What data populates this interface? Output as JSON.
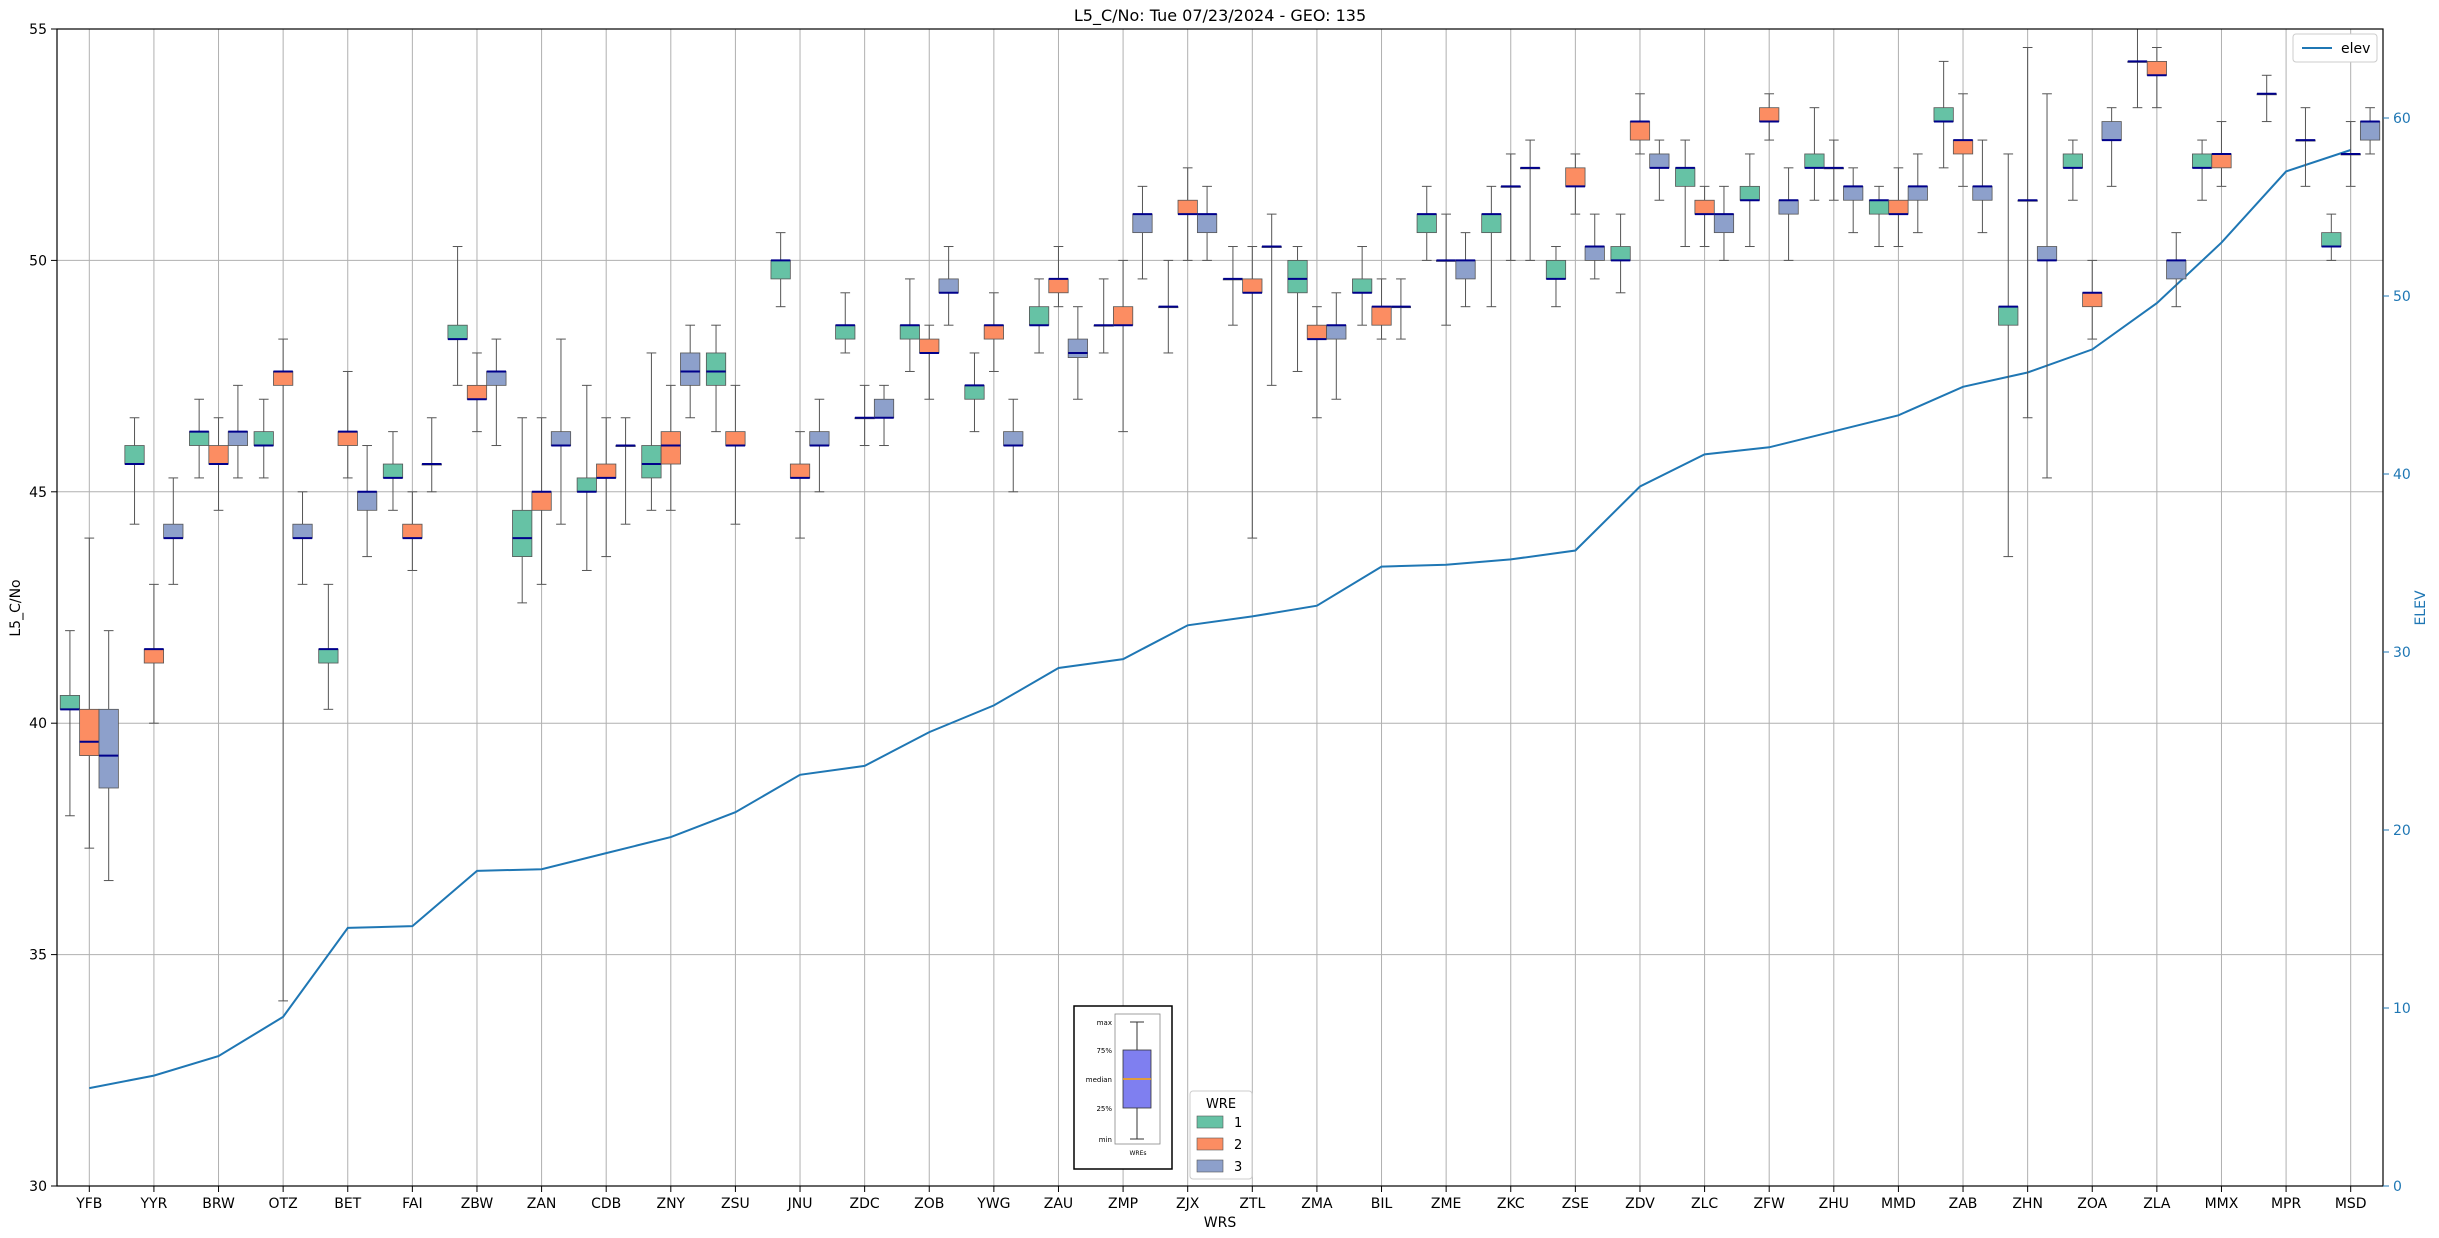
{
  "chart_data": {
    "type": "boxplot",
    "title": "L5_C/No: Tue 07/23/2024 - GEO: 135",
    "xlabel": "WRS",
    "ylabel": "L5_C/No",
    "y2label": "ELEV",
    "ylim": [
      30,
      55
    ],
    "y2lim": [
      0,
      65
    ],
    "yticks": [
      30,
      35,
      40,
      45,
      50,
      55
    ],
    "y2ticks": [
      0,
      10,
      20,
      30,
      40,
      50,
      60
    ],
    "grid": true,
    "categories": [
      "YFB",
      "YYR",
      "BRW",
      "OTZ",
      "BET",
      "FAI",
      "ZBW",
      "ZAN",
      "CDB",
      "ZNY",
      "ZSU",
      "JNU",
      "ZDC",
      "ZOB",
      "YWG",
      "ZAU",
      "ZMP",
      "ZJX",
      "ZTL",
      "ZMA",
      "BIL",
      "ZME",
      "ZKC",
      "ZSE",
      "ZDV",
      "ZLC",
      "ZFW",
      "ZHU",
      "MMD",
      "ZAB",
      "ZHN",
      "ZOA",
      "ZLA",
      "MMX",
      "MPR",
      "MSD"
    ],
    "groups": [
      {
        "name": "1",
        "color": "#66c2a5"
      },
      {
        "name": "2",
        "color": "#fc8d62"
      },
      {
        "name": "3",
        "color": "#8da0cb"
      }
    ],
    "boxes": [
      {
        "station": "YFB",
        "wre": 1,
        "min": 38.0,
        "q1": 40.3,
        "median": 40.3,
        "q3": 40.6,
        "max": 42.0
      },
      {
        "station": "YFB",
        "wre": 2,
        "min": 37.3,
        "q1": 39.3,
        "median": 39.6,
        "q3": 40.3,
        "max": 44.0
      },
      {
        "station": "YFB",
        "wre": 3,
        "min": 36.6,
        "q1": 38.6,
        "median": 39.3,
        "q3": 40.3,
        "max": 42.0
      },
      {
        "station": "YYR",
        "wre": 1,
        "min": 44.3,
        "q1": 45.6,
        "median": 45.6,
        "q3": 46.0,
        "max": 46.6
      },
      {
        "station": "YYR",
        "wre": 2,
        "min": 40.0,
        "q1": 41.3,
        "median": 41.6,
        "q3": 41.6,
        "max": 43.0
      },
      {
        "station": "YYR",
        "wre": 3,
        "min": 43.0,
        "q1": 44.0,
        "median": 44.0,
        "q3": 44.3,
        "max": 45.3
      },
      {
        "station": "BRW",
        "wre": 1,
        "min": 45.3,
        "q1": 46.0,
        "median": 46.3,
        "q3": 46.3,
        "max": 47.0
      },
      {
        "station": "BRW",
        "wre": 2,
        "min": 44.6,
        "q1": 45.6,
        "median": 45.6,
        "q3": 46.0,
        "max": 46.6
      },
      {
        "station": "BRW",
        "wre": 3,
        "min": 45.3,
        "q1": 46.0,
        "median": 46.3,
        "q3": 46.3,
        "max": 47.3
      },
      {
        "station": "OTZ",
        "wre": 1,
        "min": 45.3,
        "q1": 46.0,
        "median": 46.0,
        "q3": 46.3,
        "max": 47.0
      },
      {
        "station": "OTZ",
        "wre": 2,
        "min": 34.0,
        "q1": 47.3,
        "median": 47.6,
        "q3": 47.6,
        "max": 48.3
      },
      {
        "station": "OTZ",
        "wre": 3,
        "min": 43.0,
        "q1": 44.0,
        "median": 44.0,
        "q3": 44.3,
        "max": 45.0
      },
      {
        "station": "BET",
        "wre": 1,
        "min": 40.3,
        "q1": 41.3,
        "median": 41.6,
        "q3": 41.6,
        "max": 43.0
      },
      {
        "station": "BET",
        "wre": 2,
        "min": 45.3,
        "q1": 46.0,
        "median": 46.3,
        "q3": 46.3,
        "max": 47.6
      },
      {
        "station": "BET",
        "wre": 3,
        "min": 43.6,
        "q1": 44.6,
        "median": 45.0,
        "q3": 45.0,
        "max": 46.0
      },
      {
        "station": "FAI",
        "wre": 1,
        "min": 44.6,
        "q1": 45.3,
        "median": 45.3,
        "q3": 45.6,
        "max": 46.3
      },
      {
        "station": "FAI",
        "wre": 2,
        "min": 43.3,
        "q1": 44.0,
        "median": 44.0,
        "q3": 44.3,
        "max": 45.0
      },
      {
        "station": "FAI",
        "wre": 3,
        "min": 45.0,
        "q1": 45.6,
        "median": 45.6,
        "q3": 45.6,
        "max": 46.6
      },
      {
        "station": "ZBW",
        "wre": 1,
        "min": 47.3,
        "q1": 48.3,
        "median": 48.3,
        "q3": 48.6,
        "max": 50.3
      },
      {
        "station": "ZBW",
        "wre": 2,
        "min": 46.3,
        "q1": 47.0,
        "median": 47.0,
        "q3": 47.3,
        "max": 48.0
      },
      {
        "station": "ZBW",
        "wre": 3,
        "min": 46.0,
        "q1": 47.3,
        "median": 47.6,
        "q3": 47.6,
        "max": 48.3
      },
      {
        "station": "ZAN",
        "wre": 1,
        "min": 42.6,
        "q1": 43.6,
        "median": 44.0,
        "q3": 44.6,
        "max": 46.6
      },
      {
        "station": "ZAN",
        "wre": 2,
        "min": 43.0,
        "q1": 44.6,
        "median": 45.0,
        "q3": 45.0,
        "max": 46.6
      },
      {
        "station": "ZAN",
        "wre": 3,
        "min": 44.3,
        "q1": 46.0,
        "median": 46.0,
        "q3": 46.3,
        "max": 48.3
      },
      {
        "station": "CDB",
        "wre": 1,
        "min": 43.3,
        "q1": 45.0,
        "median": 45.0,
        "q3": 45.3,
        "max": 47.3
      },
      {
        "station": "CDB",
        "wre": 2,
        "min": 43.6,
        "q1": 45.3,
        "median": 45.3,
        "q3": 45.6,
        "max": 46.6
      },
      {
        "station": "CDB",
        "wre": 3,
        "min": 44.3,
        "q1": 46.0,
        "median": 46.0,
        "q3": 46.0,
        "max": 46.6
      },
      {
        "station": "ZNY",
        "wre": 1,
        "min": 44.6,
        "q1": 45.3,
        "median": 45.6,
        "q3": 46.0,
        "max": 48.0
      },
      {
        "station": "ZNY",
        "wre": 2,
        "min": 44.6,
        "q1": 45.6,
        "median": 46.0,
        "q3": 46.3,
        "max": 47.3
      },
      {
        "station": "ZNY",
        "wre": 3,
        "min": 46.6,
        "q1": 47.3,
        "median": 47.6,
        "q3": 48.0,
        "max": 48.6
      },
      {
        "station": "ZSU",
        "wre": 1,
        "min": 46.3,
        "q1": 47.3,
        "median": 47.6,
        "q3": 48.0,
        "max": 48.6
      },
      {
        "station": "ZSU",
        "wre": 2,
        "min": 44.3,
        "q1": 46.0,
        "median": 46.0,
        "q3": 46.3,
        "max": 47.3
      },
      {
        "station": "JNU",
        "wre": 1,
        "min": 49.0,
        "q1": 49.6,
        "median": 50.0,
        "q3": 50.0,
        "max": 50.6
      },
      {
        "station": "JNU",
        "wre": 2,
        "min": 44.0,
        "q1": 45.3,
        "median": 45.3,
        "q3": 45.6,
        "max": 46.3
      },
      {
        "station": "JNU",
        "wre": 3,
        "min": 45.0,
        "q1": 46.0,
        "median": 46.0,
        "q3": 46.3,
        "max": 47.0
      },
      {
        "station": "ZDC",
        "wre": 1,
        "min": 48.0,
        "q1": 48.3,
        "median": 48.6,
        "q3": 48.6,
        "max": 49.3
      },
      {
        "station": "ZDC",
        "wre": 2,
        "min": 46.0,
        "q1": 46.6,
        "median": 46.6,
        "q3": 46.6,
        "max": 47.3
      },
      {
        "station": "ZDC",
        "wre": 3,
        "min": 46.0,
        "q1": 46.6,
        "median": 46.6,
        "q3": 47.0,
        "max": 47.3
      },
      {
        "station": "ZOB",
        "wre": 1,
        "min": 47.6,
        "q1": 48.3,
        "median": 48.6,
        "q3": 48.6,
        "max": 49.6
      },
      {
        "station": "ZOB",
        "wre": 2,
        "min": 47.0,
        "q1": 48.0,
        "median": 48.0,
        "q3": 48.3,
        "max": 48.6
      },
      {
        "station": "ZOB",
        "wre": 3,
        "min": 48.6,
        "q1": 49.3,
        "median": 49.3,
        "q3": 49.6,
        "max": 50.3
      },
      {
        "station": "YWG",
        "wre": 1,
        "min": 46.3,
        "q1": 47.0,
        "median": 47.3,
        "q3": 47.3,
        "max": 48.0
      },
      {
        "station": "YWG",
        "wre": 2,
        "min": 47.6,
        "q1": 48.3,
        "median": 48.6,
        "q3": 48.6,
        "max": 49.3
      },
      {
        "station": "YWG",
        "wre": 3,
        "min": 45.0,
        "q1": 46.0,
        "median": 46.0,
        "q3": 46.3,
        "max": 47.0
      },
      {
        "station": "ZAU",
        "wre": 1,
        "min": 48.0,
        "q1": 48.6,
        "median": 48.6,
        "q3": 49.0,
        "max": 49.6
      },
      {
        "station": "ZAU",
        "wre": 2,
        "min": 49.0,
        "q1": 49.3,
        "median": 49.6,
        "q3": 49.6,
        "max": 50.3
      },
      {
        "station": "ZAU",
        "wre": 3,
        "min": 47.0,
        "q1": 47.9,
        "median": 48.0,
        "q3": 48.3,
        "max": 49.0
      },
      {
        "station": "ZMP",
        "wre": 1,
        "min": 48.0,
        "q1": 48.6,
        "median": 48.6,
        "q3": 48.6,
        "max": 49.6
      },
      {
        "station": "ZMP",
        "wre": 2,
        "min": 46.3,
        "q1": 48.6,
        "median": 48.6,
        "q3": 49.0,
        "max": 50.0
      },
      {
        "station": "ZMP",
        "wre": 3,
        "min": 49.6,
        "q1": 50.6,
        "median": 51.0,
        "q3": 51.0,
        "max": 51.6
      },
      {
        "station": "ZJX",
        "wre": 1,
        "min": 48.0,
        "q1": 49.0,
        "median": 49.0,
        "q3": 49.0,
        "max": 50.0
      },
      {
        "station": "ZJX",
        "wre": 2,
        "min": 50.0,
        "q1": 51.0,
        "median": 51.0,
        "q3": 51.3,
        "max": 52.0
      },
      {
        "station": "ZJX",
        "wre": 3,
        "min": 50.0,
        "q1": 50.6,
        "median": 51.0,
        "q3": 51.0,
        "max": 51.6
      },
      {
        "station": "ZTL",
        "wre": 1,
        "min": 48.6,
        "q1": 49.6,
        "median": 49.6,
        "q3": 49.6,
        "max": 50.3
      },
      {
        "station": "ZTL",
        "wre": 2,
        "min": 44.0,
        "q1": 49.3,
        "median": 49.3,
        "q3": 49.6,
        "max": 50.3
      },
      {
        "station": "ZTL",
        "wre": 3,
        "min": 47.3,
        "q1": 50.3,
        "median": 50.3,
        "q3": 50.3,
        "max": 51.0
      },
      {
        "station": "ZMA",
        "wre": 1,
        "min": 47.6,
        "q1": 49.3,
        "median": 49.6,
        "q3": 50.0,
        "max": 50.3
      },
      {
        "station": "ZMA",
        "wre": 2,
        "min": 46.6,
        "q1": 48.3,
        "median": 48.3,
        "q3": 48.6,
        "max": 49.0
      },
      {
        "station": "ZMA",
        "wre": 3,
        "min": 47.0,
        "q1": 48.3,
        "median": 48.6,
        "q3": 48.6,
        "max": 49.3
      },
      {
        "station": "BIL",
        "wre": 1,
        "min": 48.6,
        "q1": 49.3,
        "median": 49.3,
        "q3": 49.6,
        "max": 50.3
      },
      {
        "station": "BIL",
        "wre": 2,
        "min": 48.3,
        "q1": 48.6,
        "median": 49.0,
        "q3": 49.0,
        "max": 49.6
      },
      {
        "station": "BIL",
        "wre": 3,
        "min": 48.3,
        "q1": 49.0,
        "median": 49.0,
        "q3": 49.0,
        "max": 49.6
      },
      {
        "station": "ZME",
        "wre": 1,
        "min": 50.0,
        "q1": 50.6,
        "median": 51.0,
        "q3": 51.0,
        "max": 51.6
      },
      {
        "station": "ZME",
        "wre": 2,
        "min": 48.6,
        "q1": 50.0,
        "median": 50.0,
        "q3": 50.0,
        "max": 51.0
      },
      {
        "station": "ZME",
        "wre": 3,
        "min": 49.0,
        "q1": 49.6,
        "median": 50.0,
        "q3": 50.0,
        "max": 50.6
      },
      {
        "station": "ZKC",
        "wre": 1,
        "min": 49.0,
        "q1": 50.6,
        "median": 51.0,
        "q3": 51.0,
        "max": 51.6
      },
      {
        "station": "ZKC",
        "wre": 2,
        "min": 50.0,
        "q1": 51.6,
        "median": 51.6,
        "q3": 51.6,
        "max": 52.3
      },
      {
        "station": "ZKC",
        "wre": 3,
        "min": 50.0,
        "q1": 52.0,
        "median": 52.0,
        "q3": 52.0,
        "max": 52.6
      },
      {
        "station": "ZSE",
        "wre": 1,
        "min": 49.0,
        "q1": 49.6,
        "median": 49.6,
        "q3": 50.0,
        "max": 50.3
      },
      {
        "station": "ZSE",
        "wre": 2,
        "min": 51.0,
        "q1": 51.6,
        "median": 51.6,
        "q3": 52.0,
        "max": 52.3
      },
      {
        "station": "ZSE",
        "wre": 3,
        "min": 49.6,
        "q1": 50.0,
        "median": 50.3,
        "q3": 50.3,
        "max": 51.0
      },
      {
        "station": "ZDV",
        "wre": 1,
        "min": 49.3,
        "q1": 50.0,
        "median": 50.0,
        "q3": 50.3,
        "max": 51.0
      },
      {
        "station": "ZDV",
        "wre": 2,
        "min": 52.3,
        "q1": 52.6,
        "median": 53.0,
        "q3": 53.0,
        "max": 53.6
      },
      {
        "station": "ZDV",
        "wre": 3,
        "min": 51.3,
        "q1": 52.0,
        "median": 52.0,
        "q3": 52.3,
        "max": 52.6
      },
      {
        "station": "ZLC",
        "wre": 1,
        "min": 50.3,
        "q1": 51.6,
        "median": 52.0,
        "q3": 52.0,
        "max": 52.6
      },
      {
        "station": "ZLC",
        "wre": 2,
        "min": 50.3,
        "q1": 51.0,
        "median": 51.0,
        "q3": 51.3,
        "max": 51.6
      },
      {
        "station": "ZLC",
        "wre": 3,
        "min": 50.0,
        "q1": 50.6,
        "median": 51.0,
        "q3": 51.0,
        "max": 51.6
      },
      {
        "station": "ZFW",
        "wre": 1,
        "min": 50.3,
        "q1": 51.3,
        "median": 51.3,
        "q3": 51.6,
        "max": 52.3
      },
      {
        "station": "ZFW",
        "wre": 2,
        "min": 52.6,
        "q1": 53.0,
        "median": 53.0,
        "q3": 53.3,
        "max": 53.6
      },
      {
        "station": "ZFW",
        "wre": 3,
        "min": 50.0,
        "q1": 51.0,
        "median": 51.3,
        "q3": 51.3,
        "max": 52.0
      },
      {
        "station": "ZHU",
        "wre": 1,
        "min": 51.3,
        "q1": 52.0,
        "median": 52.0,
        "q3": 52.3,
        "max": 53.3
      },
      {
        "station": "ZHU",
        "wre": 2,
        "min": 51.3,
        "q1": 52.0,
        "median": 52.0,
        "q3": 52.0,
        "max": 52.6
      },
      {
        "station": "ZHU",
        "wre": 3,
        "min": 50.6,
        "q1": 51.3,
        "median": 51.6,
        "q3": 51.6,
        "max": 52.0
      },
      {
        "station": "MMD",
        "wre": 1,
        "min": 50.3,
        "q1": 51.0,
        "median": 51.3,
        "q3": 51.3,
        "max": 51.6
      },
      {
        "station": "MMD",
        "wre": 2,
        "min": 50.3,
        "q1": 51.0,
        "median": 51.0,
        "q3": 51.3,
        "max": 52.0
      },
      {
        "station": "MMD",
        "wre": 3,
        "min": 50.6,
        "q1": 51.3,
        "median": 51.6,
        "q3": 51.6,
        "max": 52.3
      },
      {
        "station": "ZAB",
        "wre": 1,
        "min": 52.0,
        "q1": 53.0,
        "median": 53.0,
        "q3": 53.3,
        "max": 54.3
      },
      {
        "station": "ZAB",
        "wre": 2,
        "min": 51.6,
        "q1": 52.3,
        "median": 52.6,
        "q3": 52.6,
        "max": 53.6
      },
      {
        "station": "ZAB",
        "wre": 3,
        "min": 50.6,
        "q1": 51.3,
        "median": 51.6,
        "q3": 51.6,
        "max": 52.6
      },
      {
        "station": "ZHN",
        "wre": 1,
        "min": 43.6,
        "q1": 48.6,
        "median": 49.0,
        "q3": 49.0,
        "max": 52.3
      },
      {
        "station": "ZHN",
        "wre": 2,
        "min": 46.6,
        "q1": 51.3,
        "median": 51.3,
        "q3": 51.3,
        "max": 54.6
      },
      {
        "station": "ZHN",
        "wre": 3,
        "min": 45.3,
        "q1": 50.0,
        "median": 50.0,
        "q3": 50.3,
        "max": 53.6
      },
      {
        "station": "ZOA",
        "wre": 1,
        "min": 51.3,
        "q1": 52.0,
        "median": 52.0,
        "q3": 52.3,
        "max": 52.6
      },
      {
        "station": "ZOA",
        "wre": 2,
        "min": 48.3,
        "q1": 49.0,
        "median": 49.3,
        "q3": 49.3,
        "max": 50.0
      },
      {
        "station": "ZOA",
        "wre": 3,
        "min": 51.6,
        "q1": 52.6,
        "median": 52.6,
        "q3": 53.0,
        "max": 53.3
      },
      {
        "station": "ZLA",
        "wre": 1,
        "min": 53.3,
        "q1": 54.3,
        "median": 54.3,
        "q3": 54.3,
        "max": 55.0
      },
      {
        "station": "ZLA",
        "wre": 2,
        "min": 53.3,
        "q1": 54.0,
        "median": 54.0,
        "q3": 54.3,
        "max": 54.6
      },
      {
        "station": "ZLA",
        "wre": 3,
        "min": 49.0,
        "q1": 49.6,
        "median": 50.0,
        "q3": 50.0,
        "max": 50.6
      },
      {
        "station": "MMX",
        "wre": 1,
        "min": 51.3,
        "q1": 52.0,
        "median": 52.0,
        "q3": 52.3,
        "max": 52.6
      },
      {
        "station": "MMX",
        "wre": 2,
        "min": 51.6,
        "q1": 52.0,
        "median": 52.3,
        "q3": 52.3,
        "max": 53.0
      },
      {
        "station": "MPR",
        "wre": 1,
        "min": 53.0,
        "q1": 53.6,
        "median": 53.6,
        "q3": 53.6,
        "max": 54.0
      },
      {
        "station": "MPR",
        "wre": 3,
        "min": 51.6,
        "q1": 52.6,
        "median": 52.6,
        "q3": 52.6,
        "max": 53.3
      },
      {
        "station": "MSD",
        "wre": 1,
        "min": 50.0,
        "q1": 50.3,
        "median": 50.3,
        "q3": 50.6,
        "max": 51.0
      },
      {
        "station": "MSD",
        "wre": 2,
        "min": 51.6,
        "q1": 52.3,
        "median": 52.3,
        "q3": 52.3,
        "max": 53.0
      },
      {
        "station": "MSD",
        "wre": 3,
        "min": 52.3,
        "q1": 52.6,
        "median": 53.0,
        "q3": 53.0,
        "max": 53.3
      }
    ],
    "elev_series": {
      "name": "elev",
      "color": "#1f77b4",
      "values": [
        5.5,
        6.2,
        7.3,
        9.5,
        14.5,
        14.6,
        17.7,
        17.8,
        18.7,
        19.6,
        21.0,
        23.1,
        23.6,
        25.5,
        27.0,
        29.1,
        29.6,
        31.5,
        32.0,
        32.6,
        34.8,
        34.9,
        35.2,
        35.7,
        39.3,
        41.1,
        41.5,
        42.4,
        43.3,
        44.9,
        45.7,
        47.0,
        49.6,
        53.0,
        57.0,
        58.2
      ]
    },
    "legend_elev": {
      "placement": "top-right",
      "label": "elev"
    },
    "legend_wre": {
      "title": "WRE",
      "placement": "bottom-center",
      "labels": [
        "1",
        "2",
        "3"
      ]
    },
    "key_inset": {
      "labels": [
        "max",
        "75%",
        "median",
        "25%",
        "min"
      ],
      "caption": "WREs",
      "box_color": "#7f7ff0",
      "median_color": "#ffa500"
    },
    "colors": {
      "median": "#00008b",
      "whisker": "#555555",
      "grid": "#b0b0b0",
      "axis_right": "#1f77b4"
    }
  }
}
